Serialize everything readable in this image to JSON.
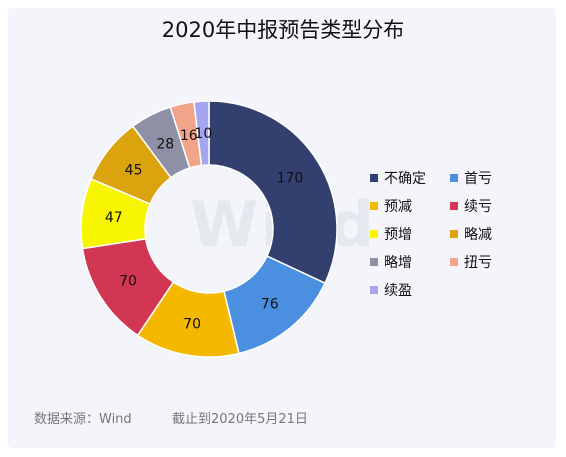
{
  "title": "2020年中报预告类型分布",
  "watermark": "Wind",
  "footer": {
    "source": "数据来源：Wind",
    "date": "截止到2020年5月21日"
  },
  "chart_data": {
    "type": "pie",
    "style": "donut",
    "title": "2020年中报预告类型分布",
    "legend_position": "right",
    "slices": [
      {
        "label": "不确定",
        "value": 170,
        "color": "#33406f"
      },
      {
        "label": "首亏",
        "value": 76,
        "color": "#4a8fe0"
      },
      {
        "label": "预减",
        "value": 70,
        "color": "#f4b800"
      },
      {
        "label": "续亏",
        "value": 70,
        "color": "#d13652"
      },
      {
        "label": "预增",
        "value": 47,
        "color": "#f8f500"
      },
      {
        "label": "略减",
        "value": 45,
        "color": "#dba40e"
      },
      {
        "label": "略增",
        "value": 28,
        "color": "#8e90a6"
      },
      {
        "label": "扭亏",
        "value": 16,
        "color": "#f2a48a"
      },
      {
        "label": "续盈",
        "value": 10,
        "color": "#a5a6f0"
      }
    ]
  }
}
